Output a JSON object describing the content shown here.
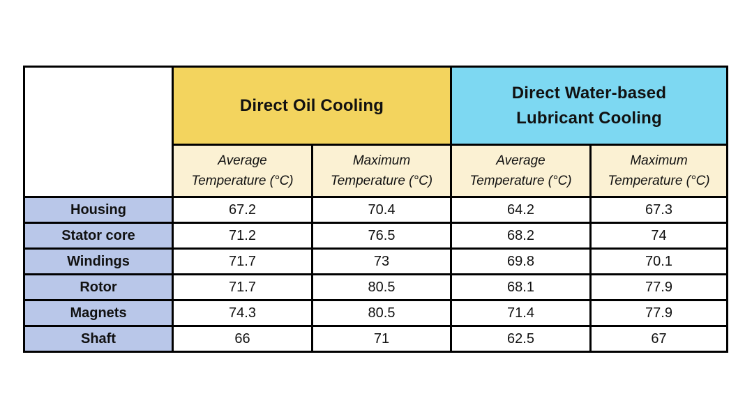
{
  "page": {
    "background": "#ffffff"
  },
  "table": {
    "colors": {
      "oil_header_bg": "#F3D45E",
      "water_header_bg": "#7DD8F2",
      "subheader_bg": "#FBF1D3",
      "row_header_bg": "#B9C7E9",
      "data_cell_bg": "#FFFFFF",
      "border": "#000000",
      "text": "#111111"
    },
    "group_headers": [
      {
        "id": "oil",
        "lines": [
          "Direct Oil Cooling"
        ]
      },
      {
        "id": "water",
        "lines": [
          "Direct Water-based",
          "Lubricant Cooling"
        ]
      }
    ],
    "subheaders": [
      {
        "line1": "Average",
        "line2": "Temperature (°C)"
      },
      {
        "line1": "Maximum",
        "line2": "Temperature (°C)"
      },
      {
        "line1": "Average",
        "line2": "Temperature (°C)"
      },
      {
        "line1": "Maximum",
        "line2": "Temperature (°C)"
      }
    ]
  },
  "chart_data": {
    "type": "table",
    "title": "",
    "column_groups": [
      {
        "label": "Direct Oil Cooling",
        "span": 2
      },
      {
        "label": "Direct Water-based Lubricant Cooling",
        "span": 2
      }
    ],
    "columns": [
      "",
      "Average Temperature (°C)",
      "Maximum Temperature (°C)",
      "Average Temperature (°C)",
      "Maximum Temperature (°C)"
    ],
    "rows": [
      [
        "Housing",
        67.2,
        70.4,
        64.2,
        67.3
      ],
      [
        "Stator core",
        71.2,
        76.5,
        68.2,
        74
      ],
      [
        "Windings",
        71.7,
        73,
        69.8,
        70.1
      ],
      [
        "Rotor",
        71.7,
        80.5,
        68.1,
        77.9
      ],
      [
        "Magnets",
        74.3,
        80.5,
        71.4,
        77.9
      ],
      [
        "Shaft",
        66,
        71,
        62.5,
        67
      ]
    ]
  }
}
